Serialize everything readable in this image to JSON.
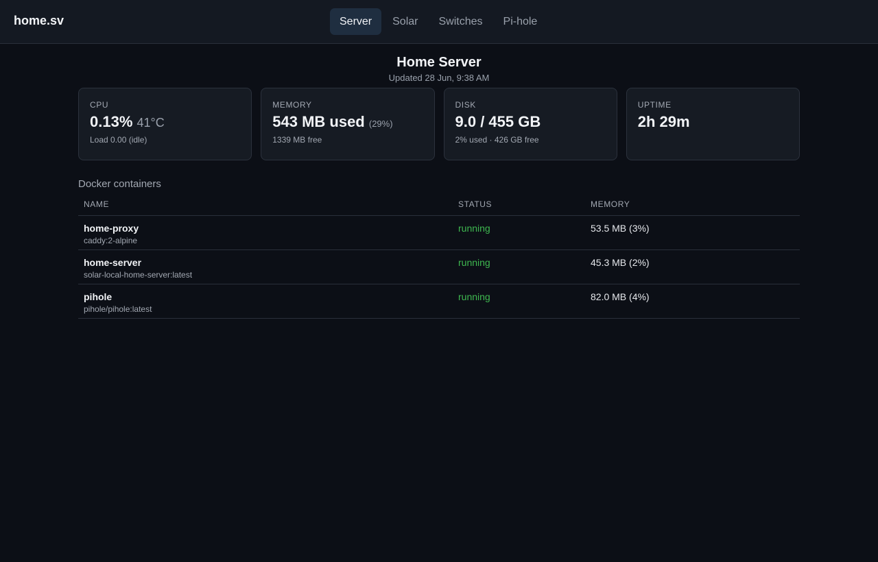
{
  "brand": "home.sv",
  "nav": {
    "tabs": [
      {
        "label": "Server",
        "active": true
      },
      {
        "label": "Solar",
        "active": false
      },
      {
        "label": "Switches",
        "active": false
      },
      {
        "label": "Pi-hole",
        "active": false
      }
    ]
  },
  "page": {
    "title": "Home Server",
    "updated": "Updated 28 Jun, 9:38 AM"
  },
  "cards": {
    "cpu": {
      "label": "CPU",
      "value": "0.13%",
      "aside": "41°C",
      "sub": "Load 0.00 (idle)"
    },
    "memory": {
      "label": "MEMORY",
      "value": "543 MB used",
      "aside": "(29%)",
      "sub": "1339 MB free"
    },
    "disk": {
      "label": "DISK",
      "value": "9.0 / 455 GB",
      "sub": "2% used · 426 GB free"
    },
    "uptime": {
      "label": "UPTIME",
      "value": "2h 29m"
    }
  },
  "containers": {
    "title": "Docker containers",
    "headers": {
      "name": "NAME",
      "status": "STATUS",
      "memory": "MEMORY"
    },
    "rows": [
      {
        "name": "home-proxy",
        "image": "caddy:2-alpine",
        "status": "running",
        "memory": "53.5 MB (3%)"
      },
      {
        "name": "home-server",
        "image": "solar-local-home-server:latest",
        "status": "running",
        "memory": "45.3 MB (2%)"
      },
      {
        "name": "pihole",
        "image": "pihole/pihole:latest",
        "status": "running",
        "memory": "82.0 MB (4%)"
      }
    ]
  },
  "colors": {
    "background": "#0c0f16",
    "accent_tab": "#1f2e40",
    "status_running": "#3fb950"
  }
}
